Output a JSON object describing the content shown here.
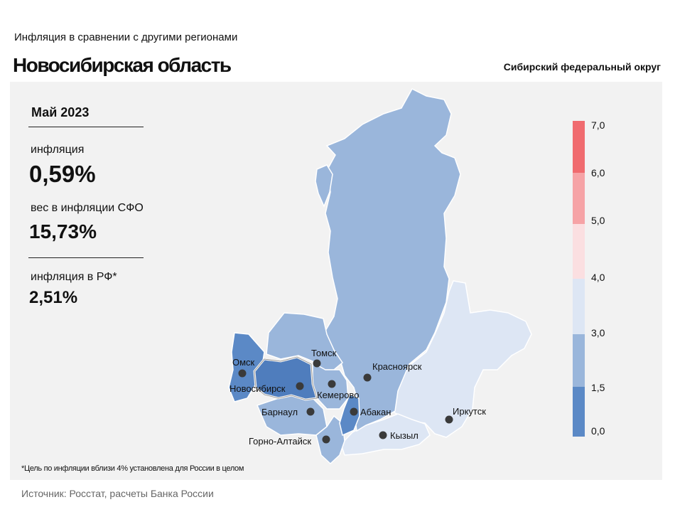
{
  "header": {
    "subtitle": "Инфляция в сравнении с другими регионами",
    "title": "Новосибирская область",
    "district": "Сибирский федеральный округ"
  },
  "stats": {
    "month": "Май 2023",
    "inflation_label": "инфляция",
    "inflation_value": "0,59%",
    "weight_label": "вес в инфляции СФО",
    "weight_value": "15,73%",
    "rf_label": "инфляция в РФ*",
    "rf_value": "2,51%"
  },
  "legend": {
    "ticks": [
      "7,0",
      "6,0",
      "5,0",
      "4,0",
      "3,0",
      "1,5",
      "0,0"
    ],
    "colors": [
      "#f06b6f",
      "#f6a3a6",
      "#fbdfe1",
      "#dde6f4",
      "#9ab6db",
      "#5b89c6"
    ]
  },
  "cities": {
    "omsk": "Омск",
    "novosibirsk": "Новосибирск",
    "tomsk": "Томск",
    "kemerovo": "Кемерово",
    "barnaul": "Барнаул",
    "gorno_altaysk": "Горно-Алтайск",
    "abakan": "Абакан",
    "krasnoyarsk": "Красноярск",
    "kyzyl": "Кызыл",
    "irkutsk": "Иркутск"
  },
  "region_colors": {
    "dark": "#5b89c6",
    "medium": "#9ab6db",
    "light": "#dde6f4"
  },
  "footnote": "*Цель по инфляции вблизи 4% установлена для России в целом",
  "source": "Источник: Росстат, расчеты Банка России"
}
